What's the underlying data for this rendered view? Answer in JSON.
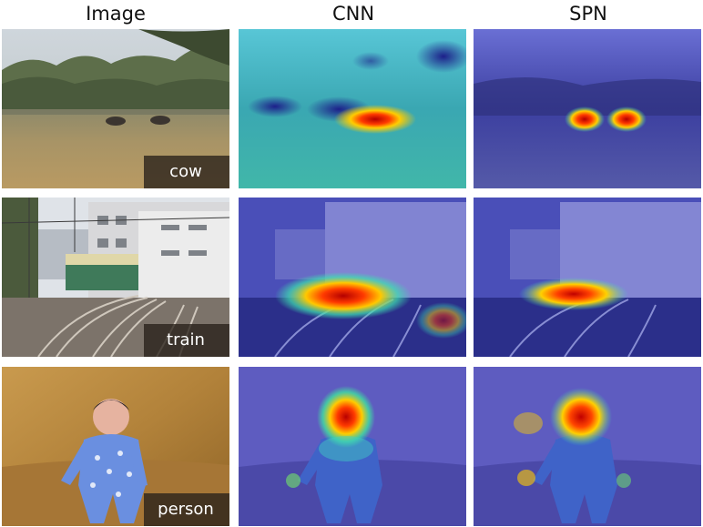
{
  "headers": {
    "image": "Image",
    "cnn": "CNN",
    "spn": "SPN"
  },
  "rows": [
    {
      "label": "cow"
    },
    {
      "label": "train"
    },
    {
      "label": "person"
    }
  ]
}
